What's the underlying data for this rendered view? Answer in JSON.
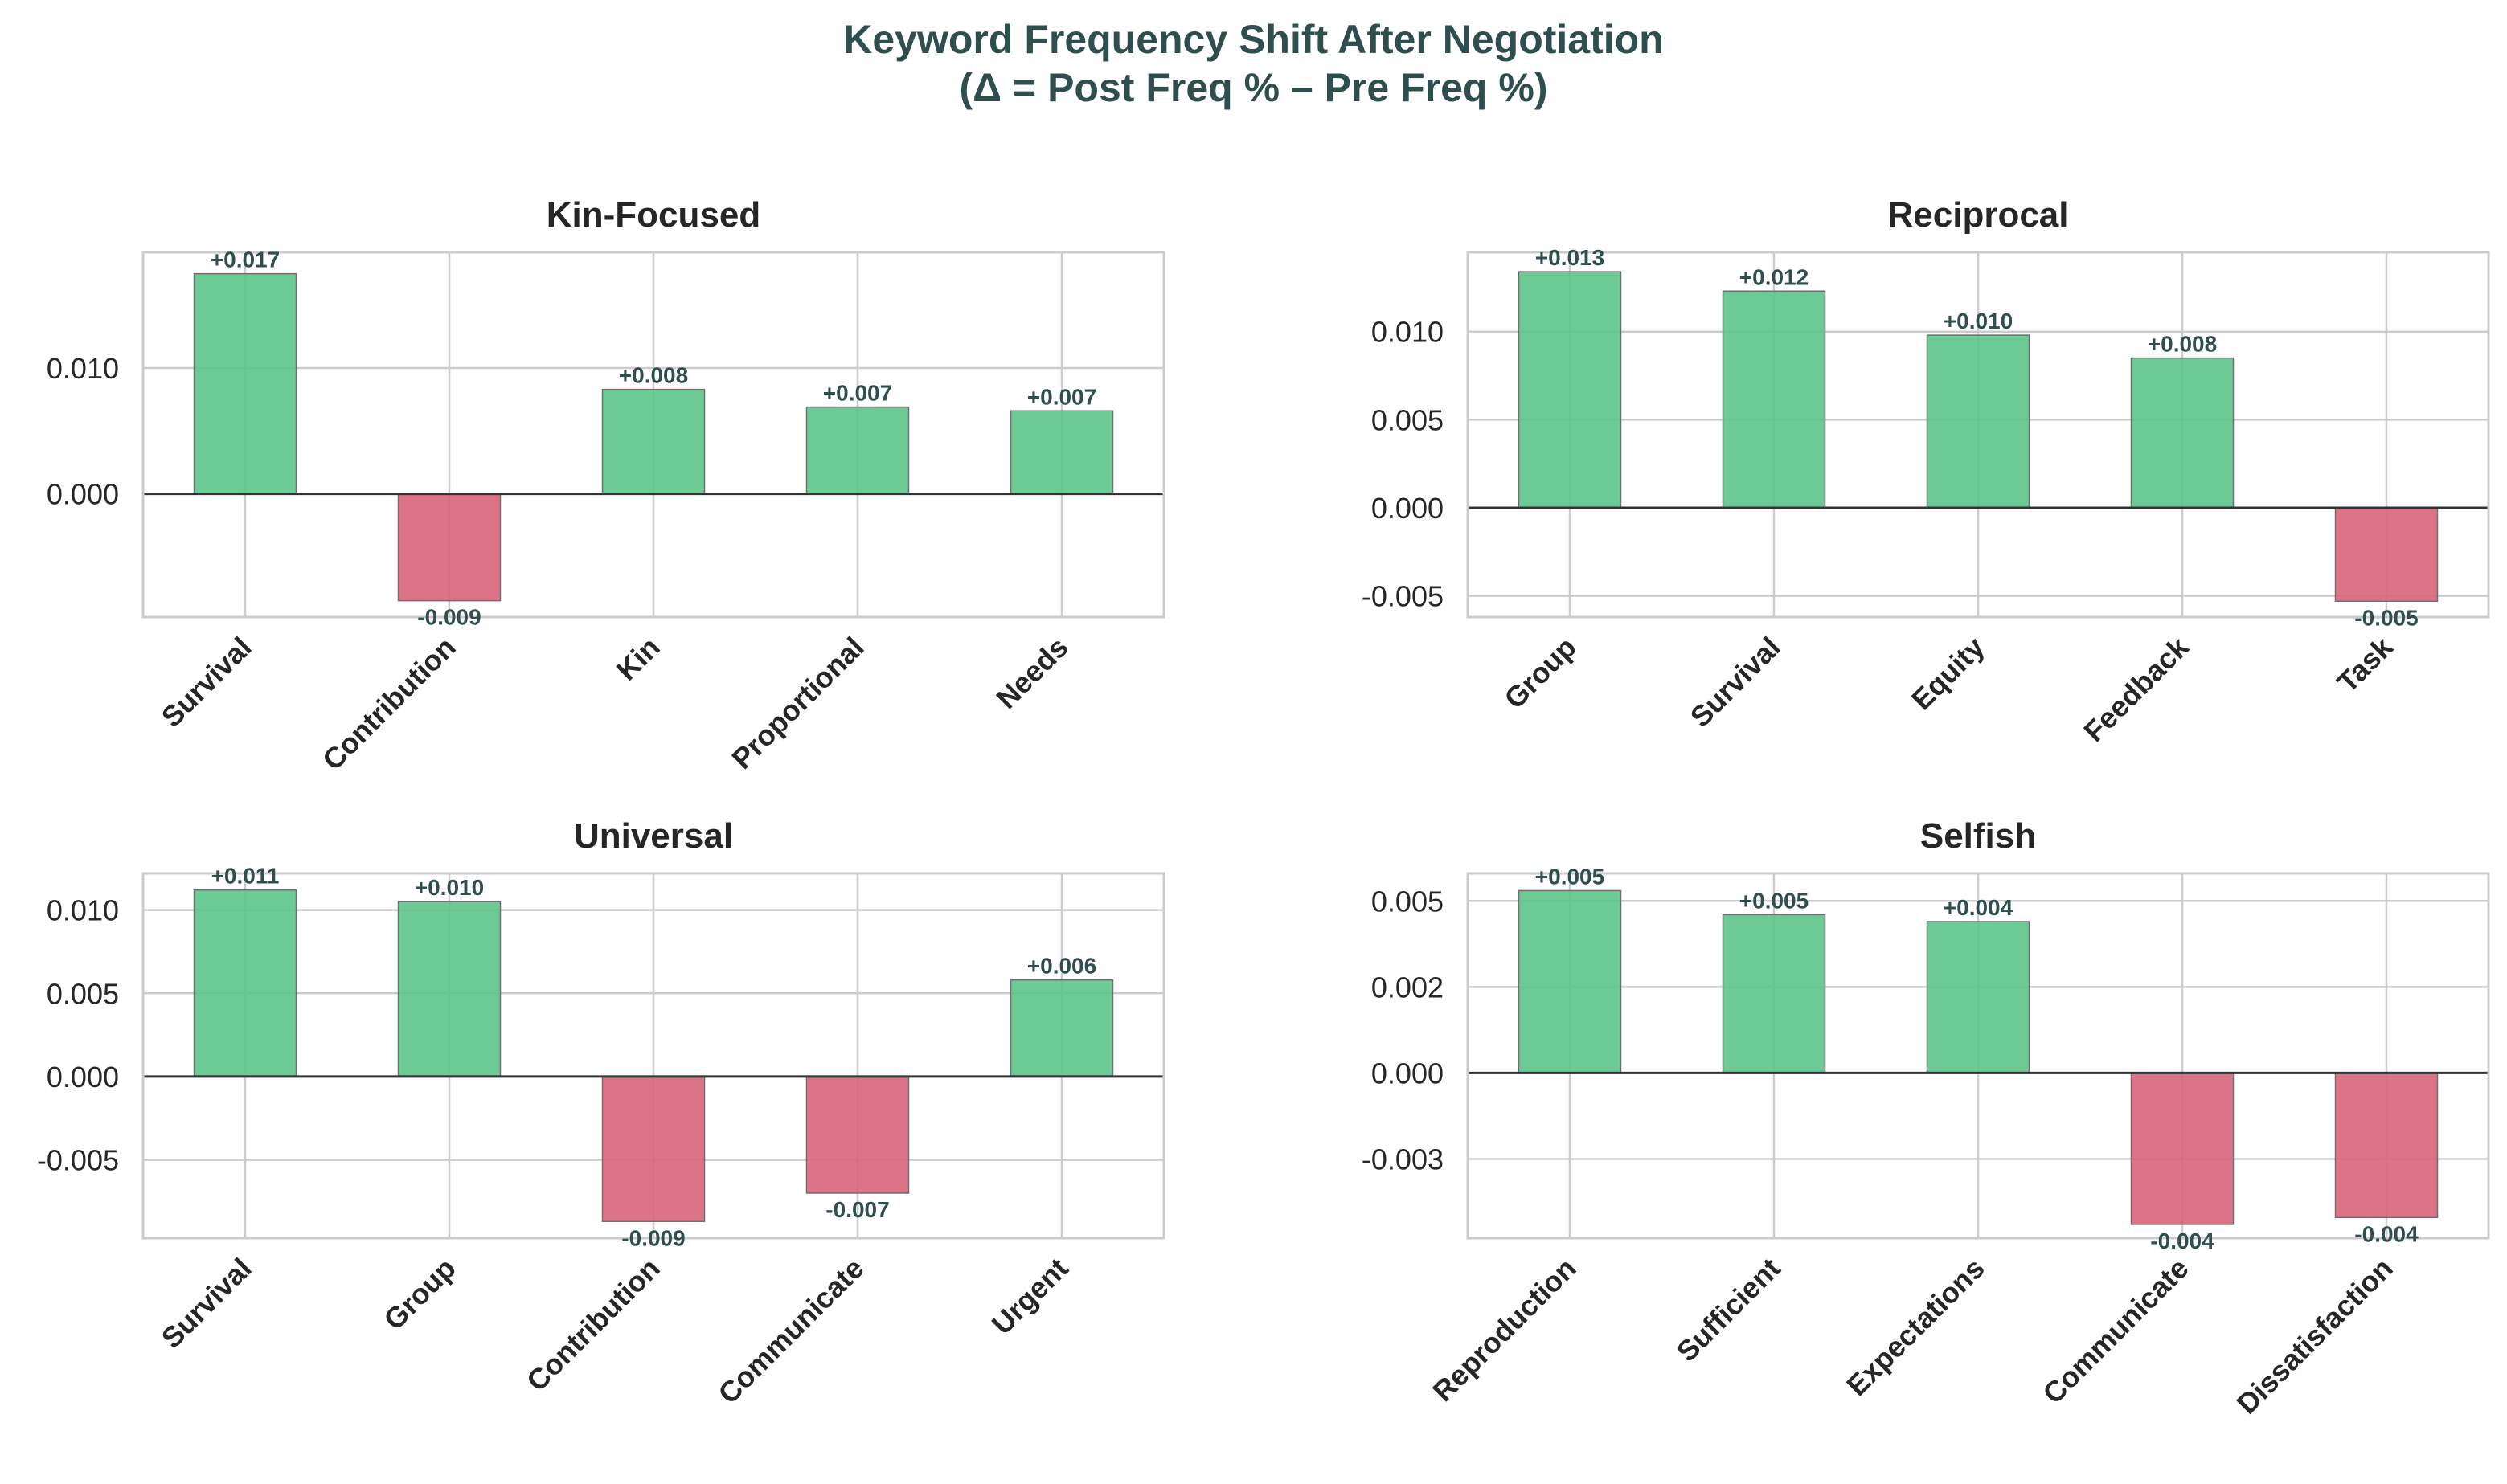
{
  "figure": {
    "title_line1": "Keyword Frequency Shift After Negotiation",
    "title_line2": "(Δ = Post Freq % – Pre Freq %)"
  },
  "colors": {
    "positive": "#5cc48a",
    "negative": "#d96479",
    "label_text": "#2f4f4f",
    "grid": "#cccccc",
    "axes_edge": "#cccccc",
    "zero_line": "#333333"
  },
  "chart_data": [
    {
      "type": "bar",
      "title": "Kin-Focused",
      "categories": [
        "Survival",
        "Contribution",
        "Kin",
        "Proportional",
        "Needs"
      ],
      "values": [
        0.0175,
        -0.0085,
        0.0083,
        0.0069,
        0.0066
      ],
      "value_labels": [
        "+0.017",
        "-0.009",
        "+0.008",
        "+0.007",
        "+0.007"
      ],
      "ylim": [
        -0.0098,
        0.0192
      ],
      "yticks": [
        0.0,
        0.01
      ],
      "ytick_labels": [
        "0.000",
        "0.010"
      ],
      "grid": true
    },
    {
      "type": "bar",
      "title": "Reciprocal",
      "categories": [
        "Group",
        "Survival",
        "Equity",
        "Feedback",
        "Task"
      ],
      "values": [
        0.0134,
        0.0123,
        0.0098,
        0.0085,
        -0.0053
      ],
      "value_labels": [
        "+0.013",
        "+0.012",
        "+0.010",
        "+0.008",
        "-0.005"
      ],
      "ylim": [
        -0.0062,
        0.0145
      ],
      "yticks": [
        -0.005,
        0.0,
        0.005,
        0.01
      ],
      "ytick_labels": [
        "-0.005",
        "0.000",
        "0.005",
        "0.010"
      ],
      "grid": true
    },
    {
      "type": "bar",
      "title": "Universal",
      "categories": [
        "Survival",
        "Group",
        "Contribution",
        "Communicate",
        "Urgent"
      ],
      "values": [
        0.0112,
        0.0105,
        -0.0087,
        -0.007,
        0.0058
      ],
      "value_labels": [
        "+0.011",
        "+0.010",
        "-0.009",
        "-0.007",
        "+0.006"
      ],
      "ylim": [
        -0.0097,
        0.0122
      ],
      "yticks": [
        -0.005,
        0.0,
        0.005,
        0.01
      ],
      "ytick_labels": [
        "-0.005",
        "0.000",
        "0.005",
        "0.010"
      ],
      "grid": true
    },
    {
      "type": "bar",
      "title": "Selfish",
      "categories": [
        "Reproduction",
        "Sufficient",
        "Expectations",
        "Communicate",
        "Dissatisfaction"
      ],
      "values": [
        0.0053,
        0.0046,
        0.0044,
        -0.0044,
        -0.0042
      ],
      "value_labels": [
        "+0.005",
        "+0.005",
        "+0.004",
        "-0.004",
        "-0.004"
      ],
      "ylim": [
        -0.0048,
        0.0058
      ],
      "yticks": [
        -0.0025,
        0.0,
        0.0025,
        0.005
      ],
      "ytick_labels": [
        "-0.003",
        "0.000",
        "0.002",
        "0.005"
      ],
      "grid": true
    }
  ]
}
